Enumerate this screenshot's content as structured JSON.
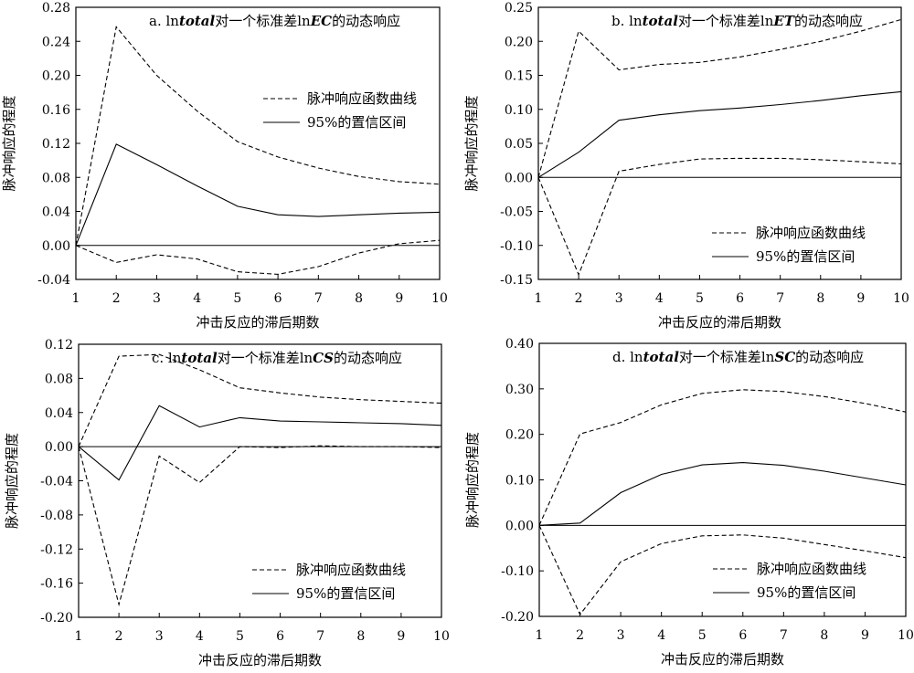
{
  "chart_data": [
    {
      "type": "line",
      "title_prefix": "a. ln",
      "title_italic": "total",
      "title_middle": "对一个标准差ln",
      "title_italic2": "EC",
      "title_suffix": "的动态响应",
      "xlabel": "冲击反应的滞后期数",
      "ylabel": "脉冲响应的程度",
      "x": [
        1,
        2,
        3,
        4,
        5,
        6,
        7,
        8,
        9,
        10
      ],
      "xlim": [
        1,
        10
      ],
      "ylim": [
        -0.04,
        0.28
      ],
      "yticks": [
        "-0.04",
        "0.00",
        "0.04",
        "0.08",
        "0.12",
        "0.16",
        "0.20",
        "0.24",
        "0.28"
      ],
      "legend_position": "upper-right",
      "series": [
        {
          "name": "脉冲响应函数曲线",
          "style": "dashed",
          "values": [
            0,
            0.257,
            0.2,
            0.158,
            0.122,
            0.104,
            0.091,
            0.081,
            0.075,
            0.072
          ]
        },
        {
          "name": "95%的置信区间",
          "style": "solid",
          "values": [
            0,
            0.119,
            0.095,
            0.07,
            0.046,
            0.036,
            0.034,
            0.036,
            0.038,
            0.039
          ]
        },
        {
          "name": "",
          "style": "dashed",
          "values": [
            0,
            -0.02,
            -0.011,
            -0.016,
            -0.031,
            -0.034,
            -0.025,
            -0.009,
            0.002,
            0.006
          ]
        }
      ]
    },
    {
      "type": "line",
      "title_prefix": "b. ln",
      "title_italic": "total",
      "title_middle": "对一个标准差ln",
      "title_italic2": "ET",
      "title_suffix": "的动态响应",
      "xlabel": "冲击反应的滞后期数",
      "ylabel": "脉冲响应的程度",
      "x": [
        1,
        2,
        3,
        4,
        5,
        6,
        7,
        8,
        9,
        10
      ],
      "xlim": [
        1,
        10
      ],
      "ylim": [
        -0.15,
        0.25
      ],
      "yticks": [
        "-0.15",
        "-0.10",
        "-0.05",
        "0.00",
        "0.05",
        "0.10",
        "0.15",
        "0.20",
        "0.25"
      ],
      "legend_position": "lower-right",
      "series": [
        {
          "name": "脉冲响应函数曲线",
          "style": "dashed",
          "values": [
            0,
            0.215,
            0.158,
            0.166,
            0.169,
            0.177,
            0.188,
            0.2,
            0.215,
            0.232
          ]
        },
        {
          "name": "95%的置信区间",
          "style": "solid",
          "values": [
            0,
            0.037,
            0.084,
            0.092,
            0.098,
            0.102,
            0.107,
            0.113,
            0.12,
            0.126
          ]
        },
        {
          "name": "",
          "style": "dashed",
          "values": [
            0,
            -0.143,
            0.009,
            0.019,
            0.027,
            0.028,
            0.028,
            0.026,
            0.023,
            0.02
          ]
        }
      ]
    },
    {
      "type": "line",
      "title_prefix": "c. ln",
      "title_italic": "total",
      "title_middle": "对一个标准差ln",
      "title_italic2": "CS",
      "title_suffix": "的动态响应",
      "xlabel": "冲击反应的滞后期数",
      "ylabel": "脉冲响应的程度",
      "x": [
        1,
        2,
        3,
        4,
        5,
        6,
        7,
        8,
        9,
        10
      ],
      "xlim": [
        1,
        10
      ],
      "ylim": [
        -0.2,
        0.12
      ],
      "yticks": [
        "-0.20",
        "-0.16",
        "-0.12",
        "-0.08",
        "-0.04",
        "0.00",
        "0.04",
        "0.08",
        "0.12"
      ],
      "legend_position": "lower-right",
      "series": [
        {
          "name": "脉冲响应函数曲线",
          "style": "dashed",
          "values": [
            0,
            0.106,
            0.108,
            0.09,
            0.069,
            0.063,
            0.058,
            0.055,
            0.053,
            0.051
          ]
        },
        {
          "name": "95%的置信区间",
          "style": "solid",
          "values": [
            0,
            -0.039,
            0.048,
            0.023,
            0.034,
            0.03,
            0.029,
            0.028,
            0.027,
            0.025
          ]
        },
        {
          "name": "",
          "style": "dashed",
          "values": [
            0,
            -0.185,
            -0.011,
            -0.042,
            0,
            -0.001,
            0.001,
            0,
            0,
            -0.001
          ]
        }
      ]
    },
    {
      "type": "line",
      "title_prefix": "d. ln",
      "title_italic": "total",
      "title_middle": "对一个标准差ln",
      "title_italic2": "SC",
      "title_suffix": "的动态响应",
      "xlabel": "冲击反应的滞后期数",
      "ylabel": "脉冲响应的程度",
      "x": [
        1,
        2,
        3,
        4,
        5,
        6,
        7,
        8,
        9,
        10
      ],
      "xlim": [
        1,
        10
      ],
      "ylim": [
        -0.2,
        0.4
      ],
      "yticks": [
        "-0.20",
        "-0.10",
        "0.00",
        "0.10",
        "0.20",
        "0.30",
        "0.40"
      ],
      "legend_position": "lower-right",
      "series": [
        {
          "name": "脉冲响应函数曲线",
          "style": "dashed",
          "values": [
            0,
            0.201,
            0.226,
            0.265,
            0.29,
            0.298,
            0.294,
            0.283,
            0.268,
            0.249
          ]
        },
        {
          "name": "95%的置信区间",
          "style": "solid",
          "values": [
            0,
            0.005,
            0.072,
            0.112,
            0.133,
            0.138,
            0.132,
            0.119,
            0.104,
            0.089
          ]
        },
        {
          "name": "",
          "style": "dashed",
          "values": [
            0,
            -0.196,
            -0.08,
            -0.04,
            -0.023,
            -0.021,
            -0.028,
            -0.042,
            -0.056,
            -0.071
          ]
        }
      ]
    }
  ]
}
